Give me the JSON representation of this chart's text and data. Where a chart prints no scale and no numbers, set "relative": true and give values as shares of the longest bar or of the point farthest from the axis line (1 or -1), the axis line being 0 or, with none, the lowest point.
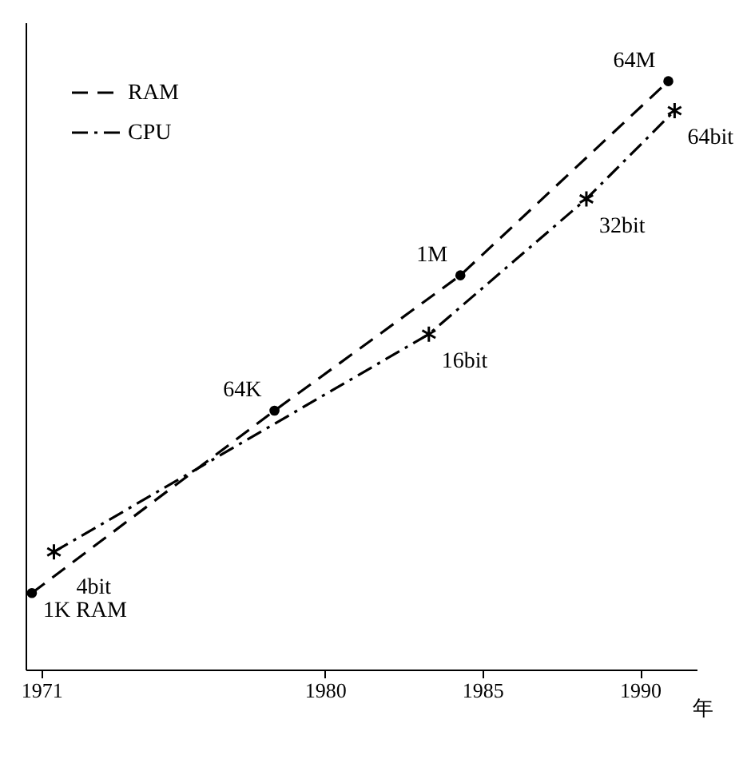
{
  "chart_data": {
    "type": "line",
    "relative": true,
    "xlabel": "年",
    "xlim": [
      1970.5,
      1991.8
    ],
    "xticks": [
      1971,
      1980,
      1985,
      1990
    ],
    "series": [
      {
        "name": "RAM",
        "color": "#000000",
        "line_style": "dashed",
        "marker": "circle",
        "x": [
          1970.7,
          1978.4,
          1984.3,
          1990.9
        ],
        "values": [
          0.13,
          0.44,
          0.67,
          1.0
        ]
      },
      {
        "name": "CPU",
        "color": "#000000",
        "line_style": "dashdot",
        "marker": "cross",
        "x": [
          1971.4,
          1983.3,
          1988.3,
          1991.1
        ],
        "values": [
          0.2,
          0.57,
          0.8,
          0.95
        ]
      }
    ],
    "annotations": [
      {
        "text": "1K RAM",
        "x": 1970.7,
        "y": 0.13
      },
      {
        "text": "64K",
        "x": 1978.4,
        "y": 0.44
      },
      {
        "text": "1M",
        "x": 1984.3,
        "y": 0.67
      },
      {
        "text": "64M",
        "x": 1990.9,
        "y": 1.0
      },
      {
        "text": "4bit",
        "x": 1971.4,
        "y": 0.2
      },
      {
        "text": "16bit",
        "x": 1983.3,
        "y": 0.57
      },
      {
        "text": "32bit",
        "x": 1988.3,
        "y": 0.8
      },
      {
        "text": "64bit",
        "x": 1991.1,
        "y": 0.95
      }
    ],
    "legend": "top left",
    "grid": false
  }
}
